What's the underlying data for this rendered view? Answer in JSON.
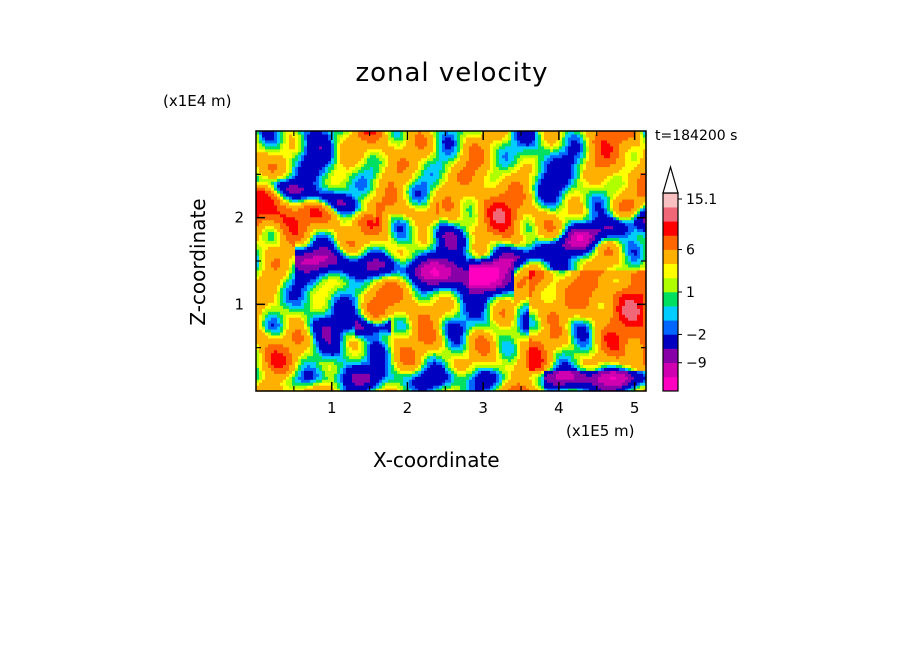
{
  "chart_data": {
    "type": "heatmap",
    "title": "zonal velocity",
    "xlabel": "X-coordinate",
    "ylabel": "Z-coordinate",
    "x_unit": "(x1E5 m)",
    "y_unit": "(x1E4 m)",
    "time_label": "t=184200 s",
    "xlim": [
      0,
      5.15
    ],
    "ylim": [
      0,
      3.0
    ],
    "x_ticks": [
      1,
      2,
      3,
      4,
      5
    ],
    "y_ticks": [
      1,
      2
    ],
    "x_tick_labels": [
      "1",
      "2",
      "3",
      "4",
      "5"
    ],
    "y_tick_labels": [
      "1",
      "2"
    ],
    "colorbar": {
      "levels": [
        -16.5,
        -12.5,
        -9,
        -6,
        -2,
        -1,
        0,
        1,
        2,
        3,
        6,
        9,
        12,
        15.1
      ],
      "tick_labels": [
        {
          "value": 15.1,
          "label": "15.1"
        },
        {
          "value": 6,
          "label": "6"
        },
        {
          "value": 1,
          "label": "1"
        },
        {
          "value": -2,
          "label": "−2"
        },
        {
          "value": -9,
          "label": "−9"
        }
      ],
      "colors": [
        "#ff00c0",
        "#d000b0",
        "#8800a8",
        "#0000c0",
        "#0066ff",
        "#00ccff",
        "#00e060",
        "#b0ff00",
        "#ffff00",
        "#ffb000",
        "#ff6600",
        "#ff0000",
        "#f06878",
        "#f8c0c0"
      ],
      "arrow_color": "#ffffff"
    },
    "field": {
      "description_note": "",
      "features": [
        {
          "kind": "band",
          "z0": 1.15,
          "z1": 1.75,
          "x_from": 0.6,
          "x_to": 3.2,
          "z_slope": 0.0,
          "value": -7
        },
        {
          "kind": "band",
          "z0": 1.45,
          "z1": 2.1,
          "x_from": 3.0,
          "x_to": 5.1,
          "z_slope": 0.25,
          "value": -6
        }
      ]
    }
  }
}
